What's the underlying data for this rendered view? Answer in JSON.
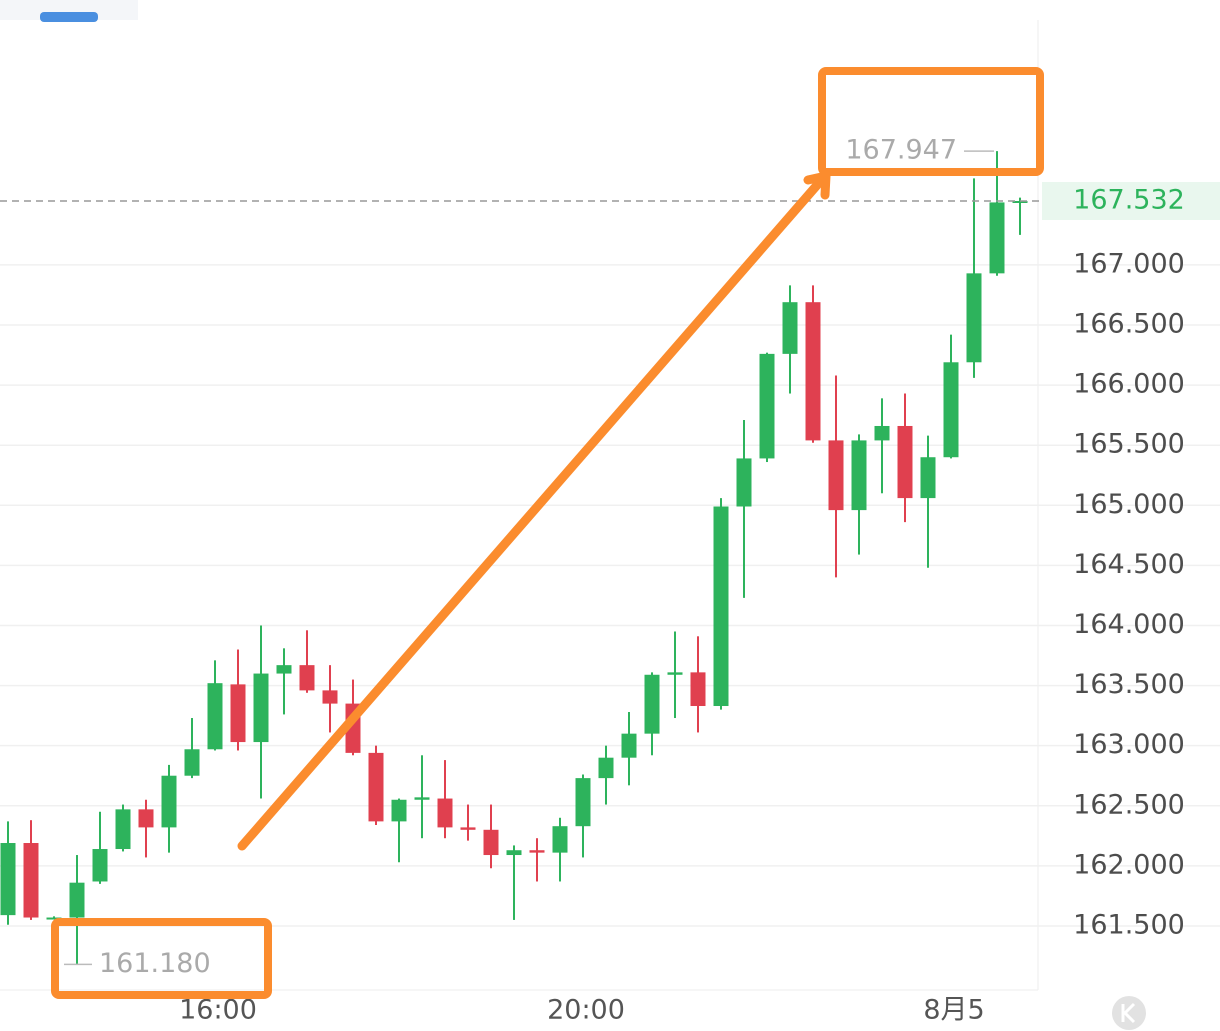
{
  "chart_data": {
    "type": "candlestick",
    "categories": [
      null,
      null,
      null,
      null,
      null,
      null,
      null,
      null,
      null,
      "16:00",
      null,
      null,
      null,
      null,
      null,
      null,
      null,
      null,
      null,
      null,
      null,
      null,
      null,
      null,
      null,
      "20:00",
      null,
      null,
      null,
      null,
      null,
      null,
      null,
      null,
      null,
      null,
      null,
      null,
      null,
      null,
      null,
      "8月5",
      null,
      null,
      null
    ],
    "open": [
      161.59,
      162.19,
      161.57,
      161.57,
      161.87,
      162.14,
      162.47,
      162.32,
      162.75,
      162.97,
      163.51,
      163.03,
      163.6,
      163.67,
      163.46,
      163.35,
      162.94,
      162.37,
      162.55,
      162.56,
      162.32,
      162.3,
      162.09,
      162.13,
      162.11,
      162.33,
      162.73,
      162.9,
      163.1,
      163.59,
      163.61,
      163.33,
      164.99,
      165.39,
      166.26,
      166.69,
      165.54,
      164.96,
      165.54,
      165.66,
      165.06,
      165.4,
      166.19,
      166.93,
      167.52
    ],
    "high": [
      162.37,
      162.38,
      161.58,
      162.09,
      162.45,
      162.51,
      162.55,
      162.84,
      163.23,
      163.71,
      163.8,
      164.0,
      163.81,
      163.96,
      163.67,
      163.55,
      163.0,
      162.56,
      162.92,
      162.88,
      162.51,
      162.51,
      162.17,
      162.23,
      162.4,
      162.76,
      163.0,
      163.28,
      163.61,
      163.95,
      163.91,
      165.06,
      165.71,
      166.27,
      166.83,
      166.83,
      166.08,
      165.59,
      165.89,
      165.93,
      165.58,
      166.42,
      167.72,
      167.947,
      167.56
    ],
    "low": [
      161.51,
      161.55,
      161.56,
      161.18,
      161.85,
      162.12,
      162.07,
      162.11,
      162.73,
      162.96,
      162.96,
      162.56,
      163.26,
      163.44,
      163.11,
      162.92,
      162.34,
      162.03,
      162.23,
      162.23,
      162.21,
      161.98,
      161.55,
      161.87,
      161.87,
      162.07,
      162.51,
      162.67,
      162.92,
      163.23,
      163.11,
      163.3,
      164.23,
      165.36,
      165.93,
      165.52,
      164.4,
      164.59,
      165.1,
      164.86,
      164.48,
      165.39,
      166.06,
      166.91,
      167.25
    ],
    "close": [
      162.19,
      161.57,
      161.57,
      161.86,
      162.14,
      162.47,
      162.32,
      162.75,
      162.97,
      163.52,
      163.03,
      163.6,
      163.67,
      163.46,
      163.35,
      162.94,
      162.37,
      162.55,
      162.57,
      162.32,
      162.3,
      162.09,
      162.13,
      162.11,
      162.33,
      162.73,
      162.9,
      163.1,
      163.59,
      163.61,
      163.33,
      164.99,
      165.39,
      166.26,
      166.69,
      165.54,
      164.96,
      165.54,
      165.66,
      165.06,
      165.4,
      166.19,
      166.93,
      167.52,
      167.532
    ],
    "up_color": "#2db35c",
    "down_color": "#e0404f",
    "ylim": [
      160.967,
      169.038
    ],
    "yticks": [
      {
        "value": 161.5,
        "label": "161.500"
      },
      {
        "value": 162,
        "label": "162.000"
      },
      {
        "value": 162.5,
        "label": "162.500"
      },
      {
        "value": 163,
        "label": "163.000"
      },
      {
        "value": 163.5,
        "label": "163.500"
      },
      {
        "value": 164,
        "label": "164.000"
      },
      {
        "value": 164.5,
        "label": "164.500"
      },
      {
        "value": 165,
        "label": "165.000"
      },
      {
        "value": 165.5,
        "label": "165.500"
      },
      {
        "value": 166,
        "label": "166.000"
      },
      {
        "value": 166.5,
        "label": "166.500"
      },
      {
        "value": 167,
        "label": "167.000"
      }
    ],
    "grid": true,
    "last_price": 167.532,
    "max_label": 167.947,
    "min_label": {
      "value": 161.18,
      "label": "161.180"
    }
  }
}
